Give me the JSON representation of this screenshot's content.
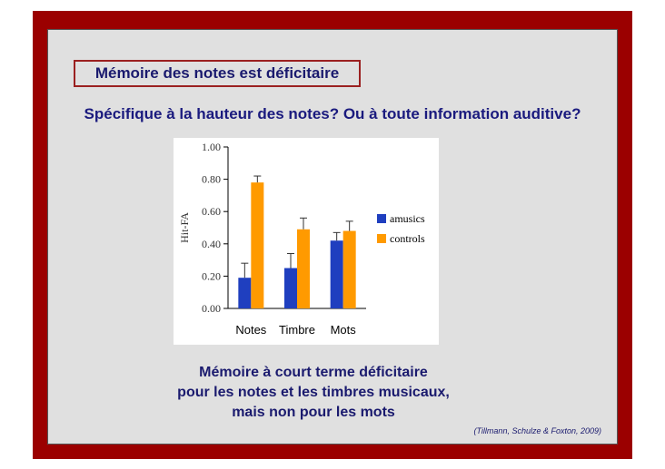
{
  "slide": {
    "title": "Mémoire des notes est déficitaire",
    "subtitle": "Spécifique à la hauteur des notes? Ou à toute information auditive?",
    "conclusion_lines": [
      "Mémoire à court terme déficitaire",
      "pour les notes et les timbres musicaux,",
      "mais non pour les mots"
    ],
    "citation": "(Tillmann, Schulze & Foxton, 2009)"
  },
  "colors": {
    "frame": "#9b0000",
    "slide_bg": "#e0e0e0",
    "text": "#1a1a6e",
    "amusics": "#1f3fbf",
    "controls": "#ff9a00"
  },
  "chart_data": {
    "type": "bar",
    "categories": [
      "Notes",
      "Timbre",
      "Mots"
    ],
    "ylabel": "Hit-FA",
    "ylim": [
      0,
      1.0
    ],
    "yticks": [
      "0.00",
      "0.20",
      "0.40",
      "0.60",
      "0.80",
      "1.00"
    ],
    "legend_position": "right",
    "series": [
      {
        "name": "amusics",
        "values": [
          0.19,
          0.25,
          0.42
        ],
        "errors": [
          0.09,
          0.09,
          0.05
        ]
      },
      {
        "name": "controls",
        "values": [
          0.78,
          0.49,
          0.48
        ],
        "errors": [
          0.04,
          0.07,
          0.06
        ]
      }
    ]
  }
}
